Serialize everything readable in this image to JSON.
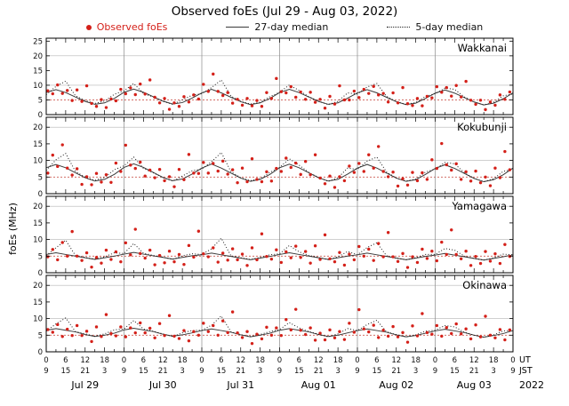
{
  "title": "Observed foEs (Jul 29 - Aug 03, 2022)",
  "legend": {
    "observed": "Observed foEs",
    "median27": "27-day median",
    "median5": "5-day median"
  },
  "colors": {
    "observed": "#d42019",
    "median27": "#3a3a3a",
    "median5": "#1a1a1a",
    "grid": "#b5b5b5",
    "dayline": "#8a8a8a",
    "threshold": "#cc5a50",
    "axis": "#000000"
  },
  "chart_data": {
    "type": "scatter",
    "ylabel": "foEs (MHz)",
    "x_range_hours": [
      0,
      144
    ],
    "threshold_mhz": 5,
    "x_hours": [
      0.5,
      2,
      3.5,
      5,
      6.5,
      8,
      9.5,
      11,
      12.5,
      14,
      15.5,
      17,
      18.5,
      20,
      21.5,
      23,
      24.5,
      26,
      27.5,
      29,
      30.5,
      32,
      33.5,
      35,
      36.5,
      38,
      39.5,
      41,
      42.5,
      44,
      45.5,
      47,
      48.5,
      50,
      51.5,
      53,
      54.5,
      56,
      57.5,
      59,
      60.5,
      62,
      63.5,
      65,
      66.5,
      68,
      69.5,
      71,
      72.5,
      74,
      75.5,
      77,
      78.5,
      80,
      81.5,
      83,
      84.5,
      86,
      87.5,
      89,
      90.5,
      92,
      93.5,
      95,
      96.5,
      98,
      99.5,
      101,
      102.5,
      104,
      105.5,
      107,
      108.5,
      110,
      111.5,
      113,
      114.5,
      116,
      117.5,
      119,
      120.5,
      122,
      123.5,
      125,
      126.5,
      128,
      129.5,
      131,
      132.5,
      134,
      135.5,
      137,
      138.5,
      140,
      141.5,
      143
    ],
    "median_x": [
      0,
      3,
      6,
      9,
      12,
      15,
      18,
      21,
      24,
      27,
      30,
      33,
      36,
      39,
      42,
      45,
      48,
      51,
      54,
      57,
      60,
      63,
      66,
      69,
      72,
      75,
      78,
      81,
      84,
      87,
      90,
      93,
      96,
      99,
      102,
      105,
      108,
      111,
      114,
      117,
      120,
      123,
      126,
      129,
      132,
      135,
      138,
      141,
      144
    ],
    "panels": [
      {
        "station": "Wakkanai",
        "ylim": [
          0,
          26
        ],
        "yticks": [
          0,
          5,
          10,
          15,
          20,
          25
        ],
        "observed_y": [
          8.1,
          7.1,
          10.1,
          7.2,
          8.2,
          4.8,
          8.4,
          4.5,
          9.8,
          3.8,
          2.8,
          5.1,
          2.4,
          5.3,
          4.7,
          8.6,
          7.1,
          9.1,
          6.8,
          10.4,
          7.0,
          11.8,
          5.9,
          4.0,
          5.5,
          1.8,
          4.0,
          2.8,
          6.1,
          4.3,
          6.7,
          5.3,
          10.3,
          7.9,
          13.8,
          7.9,
          6.5,
          7.5,
          3.9,
          5.2,
          3.2,
          5.5,
          3.0,
          4.8,
          2.8,
          7.5,
          5.5,
          12.3,
          7.8,
          7.4,
          9.5,
          5.9,
          7.7,
          5.2,
          7.6,
          4.2,
          5.2,
          2.2,
          6.2,
          3.6,
          9.8,
          5.0,
          5.0,
          8.0,
          5.8,
          8.6,
          7.2,
          9.6,
          6.7,
          7.2,
          4.3,
          7.4,
          4.0,
          9.2,
          3.7,
          3.1,
          5.5,
          3.0,
          6.2,
          5.7,
          9.5,
          7.6,
          9.2,
          6.3,
          9.9,
          6.0,
          11.3,
          4.9,
          3.5,
          4.9,
          1.7,
          4.3,
          3.2,
          6.7,
          5.2,
          7.7
        ],
        "median27_y": [
          7.5,
          8.5,
          7.5,
          6.0,
          4.5,
          3.5,
          4.0,
          5.5,
          7.6,
          8.7,
          7.6,
          6.1,
          4.6,
          3.6,
          4.1,
          5.6,
          7.4,
          8.6,
          7.4,
          5.9,
          4.4,
          3.4,
          4.0,
          5.5,
          7.5,
          8.6,
          7.5,
          6.0,
          4.5,
          3.5,
          4.0,
          5.6,
          7.4,
          8.5,
          7.4,
          5.9,
          4.4,
          3.4,
          3.9,
          5.5,
          7.3,
          8.4,
          7.3,
          5.8,
          4.3,
          3.3,
          3.9,
          5.4,
          7.4
        ],
        "median5_y": [
          6.8,
          9.6,
          11.4,
          6.4,
          4.8,
          3.8,
          4.6,
          6.9,
          8.1,
          10.6,
          7.2,
          6.0,
          4.5,
          3.5,
          5.0,
          6.6,
          7.1,
          9.2,
          11.8,
          6.3,
          4.5,
          3.6,
          4.2,
          6.1,
          7.6,
          10.1,
          8.2,
          6.1,
          4.6,
          3.4,
          4.5,
          7.4,
          7.0,
          9.4,
          10.6,
          6.2,
          4.4,
          3.5,
          4.1,
          6.2,
          7.1,
          9.0,
          8.6,
          6.0,
          4.3,
          3.3,
          4.2,
          6.4,
          7.0
        ]
      },
      {
        "station": "Kokubunji",
        "ylim": [
          0,
          23
        ],
        "yticks": [
          0,
          5,
          10,
          15,
          20
        ],
        "observed_y": [
          6.2,
          11.6,
          8.2,
          14.7,
          7.7,
          5.6,
          7.5,
          2.8,
          5.1,
          2.7,
          6.1,
          3.5,
          5.7,
          3.4,
          9.2,
          6.7,
          14.6,
          8.6,
          7.6,
          9.5,
          5.3,
          7.1,
          4.8,
          7.3,
          3.9,
          5.1,
          2.1,
          7.3,
          4.2,
          11.8,
          6.2,
          6.1,
          9.4,
          6.2,
          9.1,
          6.8,
          9.8,
          5.9,
          7.2,
          3.3,
          7.7,
          3.6,
          10.5,
          4.3,
          3.6,
          6.6,
          3.8,
          7.6,
          6.7,
          10.7,
          7.9,
          9.2,
          5.8,
          9.7,
          5.7,
          11.7,
          4.7,
          3.0,
          5.3,
          1.9,
          5.1,
          3.9,
          8.3,
          6.4,
          9.1,
          6.7,
          11.7,
          7.7,
          14.2,
          6.7,
          5.1,
          6.5,
          2.3,
          4.5,
          2.6,
          6.4,
          3.9,
          6.3,
          4.3,
          10.2,
          7.6,
          15.1,
          8.7,
          7.1,
          9.0,
          4.3,
          6.6,
          3.8,
          6.8,
          3.3,
          5.0,
          2.4,
          7.7,
          4.8,
          12.7,
          7.2
        ],
        "median27_y": [
          7.8,
          8.8,
          7.8,
          6.3,
          4.8,
          3.8,
          4.3,
          5.8,
          7.9,
          9.0,
          7.9,
          6.4,
          4.9,
          3.9,
          4.4,
          5.9,
          7.7,
          8.9,
          7.7,
          6.2,
          4.7,
          3.7,
          4.3,
          5.8,
          7.8,
          8.9,
          7.8,
          6.3,
          4.8,
          3.8,
          4.3,
          5.9,
          7.7,
          8.8,
          7.7,
          6.2,
          4.7,
          3.7,
          4.2,
          5.8,
          7.6,
          8.7,
          7.6,
          6.1,
          4.6,
          3.6,
          4.2,
          5.7,
          7.7
        ],
        "median5_y": [
          7.0,
          10.2,
          12.1,
          6.7,
          5.0,
          4.0,
          4.9,
          7.2,
          8.4,
          11.0,
          7.6,
          6.3,
          4.8,
          3.8,
          5.3,
          6.9,
          7.4,
          9.6,
          12.4,
          6.6,
          4.8,
          3.9,
          4.5,
          6.4,
          7.9,
          10.5,
          8.6,
          6.4,
          4.9,
          3.7,
          4.8,
          7.7,
          7.3,
          9.8,
          11.0,
          6.5,
          4.7,
          3.8,
          4.4,
          6.5,
          7.4,
          9.4,
          9.0,
          6.3,
          4.6,
          3.6,
          4.5,
          6.7,
          7.3
        ]
      },
      {
        "station": "Yamagawa",
        "ylim": [
          0,
          23
        ],
        "yticks": [
          0,
          5,
          10,
          15,
          20
        ],
        "observed_y": [
          4.8,
          7.0,
          3.9,
          9.1,
          5.0,
          12.4,
          5.0,
          3.7,
          6.0,
          1.7,
          4.6,
          2.9,
          6.8,
          4.0,
          6.3,
          3.3,
          9.0,
          5.4,
          13.1,
          5.8,
          4.4,
          6.8,
          2.4,
          5.2,
          3.0,
          6.5,
          3.3,
          5.5,
          2.5,
          8.2,
          4.7,
          12.5,
          5.7,
          4.8,
          7.5,
          3.2,
          5.9,
          3.8,
          7.2,
          3.9,
          5.6,
          2.2,
          7.5,
          3.9,
          11.7,
          4.9,
          4.1,
          6.9,
          3.1,
          6.3,
          4.5,
          8.0,
          4.6,
          6.4,
          2.9,
          8.1,
          4.0,
          11.4,
          4.2,
          3.3,
          6.1,
          2.3,
          5.6,
          3.9,
          7.9,
          5.0,
          7.1,
          3.7,
          8.8,
          4.8,
          12.1,
          4.8,
          3.4,
          5.8,
          1.6,
          4.8,
          3.1,
          7.1,
          4.3,
          6.5,
          3.6,
          9.2,
          5.5,
          12.9,
          5.5,
          4.2,
          6.5,
          2.2,
          4.9,
          2.8,
          6.4,
          3.5,
          5.7,
          2.8,
          8.5,
          4.9
        ],
        "median27_y": [
          5.5,
          6.0,
          5.5,
          5.0,
          4.5,
          4.0,
          4.5,
          5.0,
          5.6,
          6.1,
          5.6,
          5.1,
          4.6,
          4.1,
          4.6,
          5.1,
          5.4,
          5.9,
          5.4,
          4.9,
          4.4,
          3.9,
          4.4,
          4.9,
          5.5,
          6.0,
          5.5,
          5.0,
          4.5,
          4.0,
          4.5,
          5.0,
          5.4,
          5.9,
          5.4,
          4.9,
          4.4,
          3.9,
          4.4,
          4.9,
          5.3,
          5.8,
          5.3,
          4.8,
          4.3,
          3.8,
          4.3,
          4.8,
          5.4
        ],
        "median5_y": [
          5.2,
          7.5,
          9.8,
          5.2,
          4.6,
          4.1,
          4.8,
          6.0,
          5.8,
          8.8,
          5.9,
          5.2,
          4.7,
          4.0,
          5.1,
          5.7,
          5.5,
          7.2,
          10.4,
          5.1,
          4.5,
          4.0,
          4.6,
          5.4,
          5.7,
          8.2,
          6.3,
          5.2,
          4.6,
          3.9,
          4.8,
          6.4,
          5.4,
          7.6,
          9.0,
          5.1,
          4.4,
          3.9,
          4.5,
          5.5,
          5.5,
          7.3,
          6.8,
          5.0,
          4.3,
          3.8,
          4.5,
          5.6,
          5.4
        ]
      },
      {
        "station": "Okinawa",
        "ylim": [
          0,
          23
        ],
        "yticks": [
          0,
          5,
          10,
          15,
          20
        ],
        "observed_y": [
          6.7,
          5.9,
          8.2,
          4.6,
          6.8,
          4.9,
          7.9,
          4.9,
          6.2,
          3.1,
          7.5,
          4.6,
          11.2,
          5.5,
          4.8,
          7.5,
          4.5,
          7.2,
          5.7,
          8.7,
          5.7,
          7.1,
          4.2,
          8.5,
          4.9,
          10.9,
          4.7,
          4.0,
          6.4,
          3.3,
          6.1,
          5.0,
          8.6,
          6.1,
          7.9,
          5.0,
          9.3,
          5.8,
          12.0,
          5.7,
          4.3,
          6.1,
          2.5,
          5.3,
          3.9,
          7.4,
          5.0,
          7.2,
          4.9,
          9.7,
          6.6,
          12.8,
          6.5,
          5.2,
          7.2,
          3.5,
          5.6,
          3.6,
          6.6,
          4.2,
          6.1,
          3.7,
          8.6,
          5.9,
          12.7,
          6.9,
          6.0,
          8.0,
          4.3,
          6.5,
          4.7,
          7.6,
          4.5,
          5.8,
          2.9,
          7.8,
          4.8,
          11.5,
          5.8,
          5.3,
          7.9,
          4.7,
          7.3,
          5.5,
          8.4,
          5.4,
          6.9,
          3.9,
          8.1,
          4.5,
          10.7,
          5.0,
          4.2,
          6.7,
          3.6,
          6.6
        ],
        "median27_y": [
          6.5,
          7.0,
          6.5,
          6.0,
          5.2,
          4.6,
          5.0,
          5.6,
          6.6,
          7.1,
          6.6,
          6.1,
          5.3,
          4.7,
          5.1,
          5.7,
          6.4,
          6.9,
          6.4,
          5.9,
          5.1,
          4.5,
          5.0,
          5.6,
          6.5,
          7.0,
          6.5,
          6.0,
          5.2,
          4.6,
          5.0,
          5.7,
          6.4,
          6.9,
          6.4,
          5.9,
          5.1,
          4.5,
          4.9,
          5.6,
          6.3,
          6.8,
          6.3,
          5.8,
          5.0,
          4.4,
          4.9,
          5.5,
          6.4
        ],
        "median5_y": [
          6.2,
          8.4,
          10.2,
          6.1,
          5.4,
          4.7,
          5.4,
          6.6,
          6.9,
          9.4,
          6.9,
          6.2,
          5.4,
          4.6,
          5.7,
          6.4,
          6.5,
          8.0,
          10.8,
          6.0,
          5.2,
          4.6,
          5.2,
          6.1,
          6.7,
          8.8,
          7.2,
          6.1,
          5.3,
          4.5,
          5.4,
          7.0,
          6.4,
          8.2,
          9.5,
          6.0,
          5.2,
          4.5,
          5.1,
          6.2,
          6.5,
          7.9,
          7.5,
          5.9,
          5.0,
          4.4,
          5.1,
          6.3,
          6.4
        ]
      }
    ],
    "x_axis": {
      "major_tick_hours": 6,
      "minor_tick_hours": 3,
      "jst_offset": 9,
      "days": [
        "Jul 29",
        "Jul 30",
        "Jul 31",
        "Aug 01",
        "Aug 02",
        "Aug 03"
      ],
      "right_labels": {
        "row1": "UT",
        "row2": "JST",
        "year": "2022"
      }
    }
  }
}
